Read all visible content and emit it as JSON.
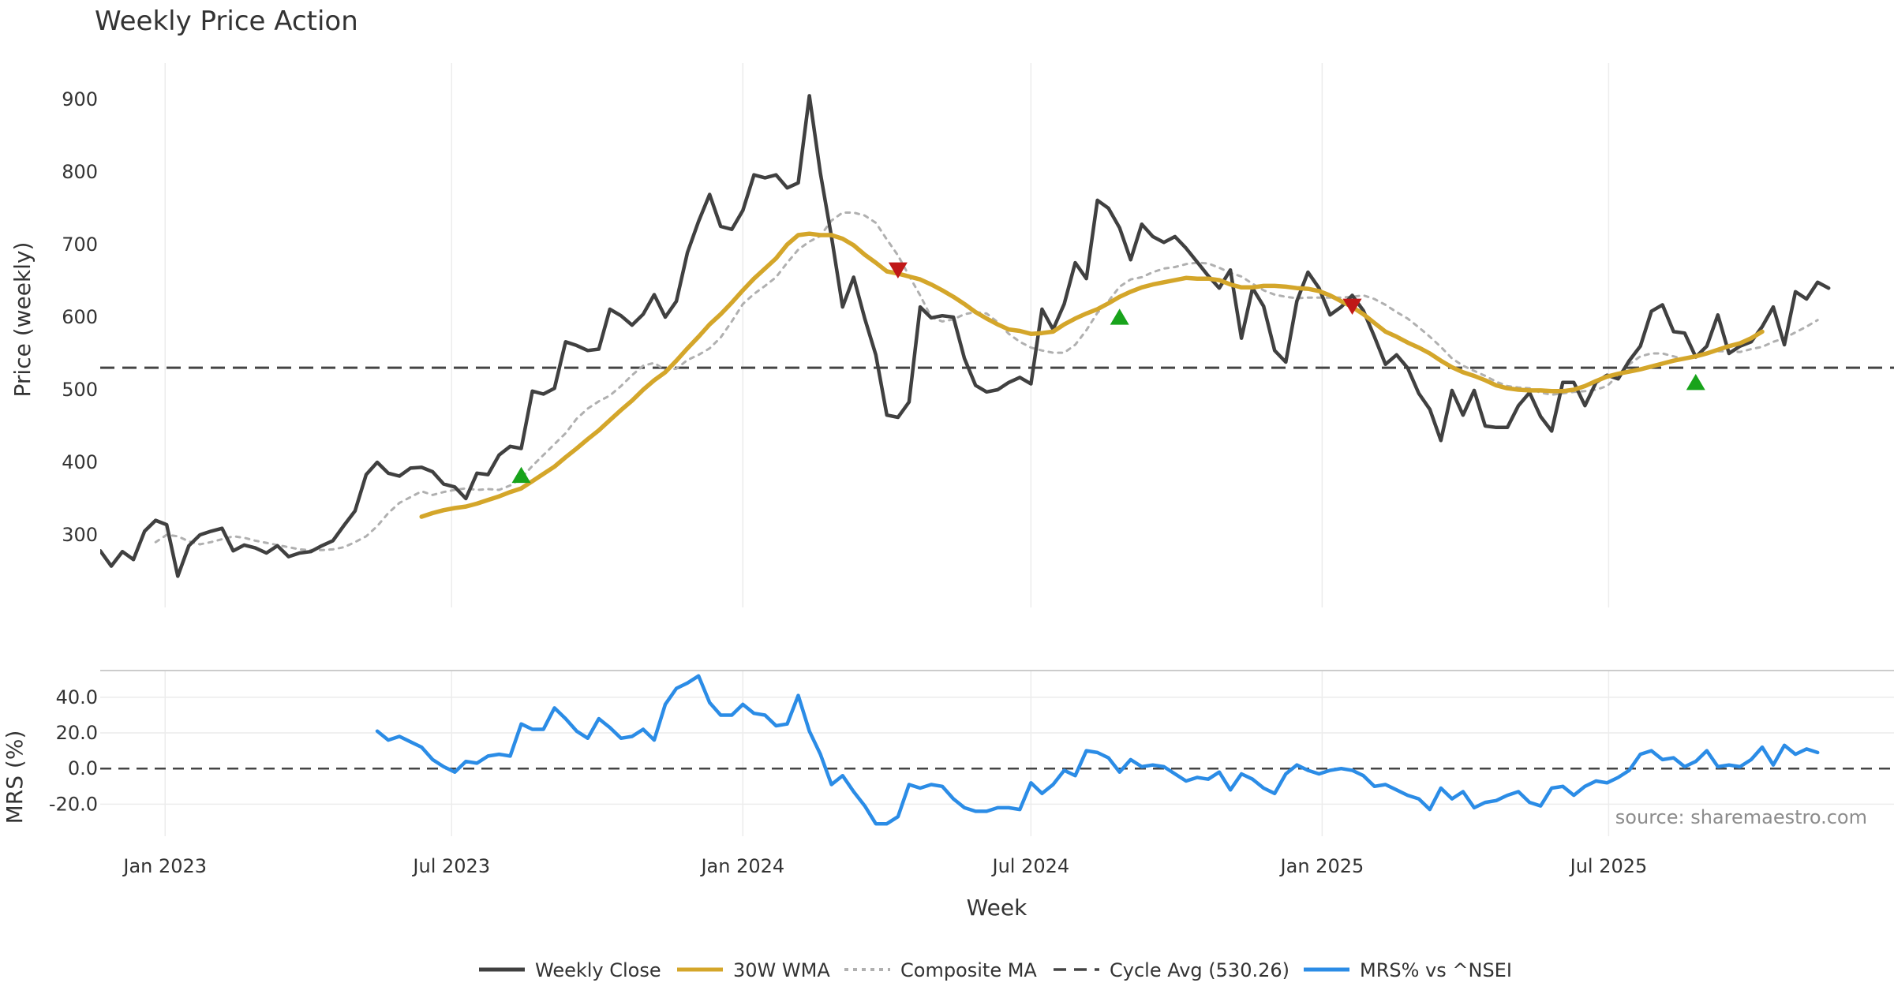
{
  "title": "Weekly Price Action",
  "source": "source: sharemaestro.com",
  "colors": {
    "close": "#404040",
    "wma": "#d4a62a",
    "composite": "#b0b0b0",
    "cycle": "#444444",
    "mrs": "#2b8ce6",
    "up": "#18a31b",
    "down": "#c01818",
    "grid": "#ececec"
  },
  "chart_data": [
    {
      "type": "line",
      "panel": "price",
      "ylabel": "Price (weekly)",
      "ylim": [
        200,
        950
      ],
      "yticks": [
        300,
        400,
        500,
        600,
        700,
        800,
        900
      ],
      "ytick_labels": [
        "300",
        "400",
        "500",
        "600",
        "700",
        "800",
        "900"
      ],
      "x_start": "2022-11-21",
      "grid": true,
      "series": [
        {
          "name": "Weekly Close",
          "start_week": 0,
          "values": [
            278,
            257,
            277,
            266,
            305,
            320,
            314,
            243,
            285,
            300,
            305,
            309,
            278,
            286,
            282,
            275,
            285,
            270,
            275,
            277,
            285,
            292,
            313,
            333,
            383,
            400,
            385,
            381,
            392,
            393,
            387,
            370,
            366,
            350,
            385,
            383,
            410,
            422,
            419,
            498,
            494,
            502,
            566,
            561,
            554,
            556,
            611,
            602,
            589,
            604,
            631,
            600,
            622,
            689,
            732,
            769,
            725,
            721,
            747,
            796,
            792,
            796,
            778,
            785,
            905,
            798,
            711,
            614,
            655,
            598,
            548,
            465,
            462,
            483,
            614,
            599,
            602,
            600,
            543,
            506,
            497,
            500,
            510,
            517,
            508,
            611,
            583,
            618,
            675,
            653,
            761,
            750,
            723,
            679,
            728,
            711,
            703,
            711,
            695,
            676,
            657,
            640,
            665,
            571,
            640,
            615,
            554,
            538,
            622,
            662,
            640,
            603,
            614,
            630,
            609,
            573,
            535,
            548,
            530,
            495,
            473,
            430,
            499,
            465,
            499,
            450,
            448,
            448,
            478,
            496,
            463,
            443,
            510,
            510,
            478,
            510,
            520,
            515,
            540,
            560,
            608,
            617,
            580,
            578,
            545,
            560,
            603,
            550,
            560,
            566,
            587,
            614,
            562,
            635,
            625,
            648,
            640
          ]
        },
        {
          "name": "30W WMA",
          "start_week": 29,
          "values": [
            325,
            330,
            334,
            337,
            339,
            343,
            348,
            353,
            359,
            364,
            374,
            384,
            394,
            407,
            419,
            432,
            444,
            458,
            472,
            485,
            500,
            513,
            524,
            540,
            557,
            573,
            590,
            604,
            620,
            637,
            653,
            667,
            681,
            700,
            713,
            715,
            713,
            713,
            708,
            699,
            686,
            675,
            663,
            660,
            656,
            652,
            645,
            637,
            628,
            618,
            607,
            598,
            590,
            583,
            581,
            577,
            578,
            580,
            590,
            598,
            605,
            611,
            619,
            628,
            635,
            641,
            645,
            648,
            651,
            654,
            653,
            653,
            651,
            645,
            641,
            641,
            643,
            643,
            642,
            640,
            639,
            636,
            630,
            622,
            614,
            604,
            592,
            580,
            573,
            565,
            558,
            550,
            540,
            531,
            524,
            519,
            513,
            506,
            502,
            500,
            499,
            499,
            498,
            498,
            500,
            505,
            512,
            518,
            522,
            525,
            528,
            532,
            536,
            540,
            543,
            546,
            550,
            555,
            560,
            564,
            571,
            580
          ]
        },
        {
          "name": "Composite MA",
          "start_week": 5,
          "values": [
            290,
            300,
            298,
            291,
            287,
            290,
            294,
            298,
            296,
            292,
            289,
            286,
            283,
            280,
            279,
            279,
            280,
            283,
            290,
            298,
            312,
            330,
            344,
            352,
            360,
            355,
            359,
            362,
            364,
            362,
            363,
            362,
            368,
            378,
            395,
            410,
            425,
            440,
            460,
            474,
            484,
            492,
            505,
            520,
            533,
            537,
            527,
            529,
            541,
            548,
            557,
            572,
            594,
            618,
            632,
            643,
            655,
            675,
            693,
            704,
            712,
            733,
            744,
            744,
            740,
            730,
            707,
            685,
            657,
            630,
            600,
            594,
            597,
            604,
            607,
            605,
            593,
            577,
            566,
            558,
            554,
            551,
            551,
            562,
            582,
            606,
            622,
            642,
            652,
            655,
            662,
            667,
            669,
            673,
            675,
            674,
            668,
            661,
            656,
            646,
            637,
            631,
            628,
            626,
            627,
            627,
            627,
            627,
            628,
            630,
            625,
            617,
            607,
            598,
            586,
            573,
            559,
            543,
            533,
            526,
            519,
            511,
            505,
            503,
            502,
            496,
            493,
            495,
            497,
            498,
            500,
            505,
            520,
            535,
            546,
            550,
            550,
            546,
            542,
            546,
            550,
            553,
            553,
            552,
            556,
            559,
            566,
            571,
            579,
            587,
            596
          ]
        }
      ],
      "hline": {
        "name": "Cycle Avg (530.26)",
        "value": 530.26
      },
      "markers": [
        {
          "type": "up",
          "week": 38,
          "value": 382
        },
        {
          "type": "down",
          "week": 72,
          "value": 665
        },
        {
          "type": "up",
          "week": 92,
          "value": 600
        },
        {
          "type": "down",
          "week": 113,
          "value": 615
        },
        {
          "type": "up",
          "week": 144,
          "value": 510
        }
      ]
    },
    {
      "type": "line",
      "panel": "mrs",
      "ylabel": "MRS (%)",
      "xlabel": "Week",
      "ylim": [
        -38,
        55
      ],
      "yticks": [
        -20,
        0,
        20,
        40
      ],
      "ytick_labels": [
        "-20.0",
        "0.0",
        "20.0",
        "40.0"
      ],
      "xtick_labels": [
        "Jan 2023",
        "Jul 2023",
        "Jan 2024",
        "Jul 2024",
        "Jan 2025",
        "Jul 2025"
      ],
      "xtick_dates": [
        "2023-01-01",
        "2023-07-01",
        "2024-01-01",
        "2024-07-01",
        "2025-01-01",
        "2025-07-01"
      ],
      "series": [
        {
          "name": "MRS% vs ^NSEI",
          "start_week": 25,
          "values": [
            21,
            16,
            18,
            15,
            12,
            5,
            1,
            -2,
            4,
            3,
            7,
            8,
            7,
            25,
            22,
            22,
            34,
            28,
            21,
            17,
            28,
            23,
            17,
            18,
            22,
            16,
            36,
            45,
            48,
            52,
            37,
            30,
            30,
            36,
            31,
            30,
            24,
            25,
            41,
            21,
            8,
            -9,
            -4,
            -13,
            -21,
            -31,
            -31,
            -27,
            -9,
            -11,
            -9,
            -10,
            -17,
            -22,
            -24,
            -24,
            -22,
            -22,
            -23,
            -8,
            -14,
            -9,
            -1,
            -4,
            10,
            9,
            6,
            -2,
            5,
            1,
            2,
            1,
            -3,
            -7,
            -5,
            -6,
            -2,
            -12,
            -3,
            -6,
            -11,
            -14,
            -3,
            2,
            -1,
            -3,
            -1,
            0,
            -1,
            -4,
            -10,
            -9,
            -12,
            -15,
            -17,
            -23,
            -11,
            -17,
            -13,
            -22,
            -19,
            -18,
            -15,
            -13,
            -19,
            -21,
            -11,
            -10,
            -15,
            -10,
            -7,
            -8,
            -5,
            -1,
            8,
            10,
            5,
            6,
            1,
            4,
            10,
            1,
            2,
            1,
            5,
            12,
            2,
            13,
            8,
            11,
            9
          ]
        }
      ],
      "hline": {
        "value": 0
      }
    }
  ],
  "legend": [
    {
      "name": "Weekly Close",
      "style": "solid",
      "color": "#404040"
    },
    {
      "name": "30W WMA",
      "style": "solid",
      "color": "#d4a62a"
    },
    {
      "name": "Composite MA",
      "style": "dotted",
      "color": "#b0b0b0"
    },
    {
      "name": "Cycle Avg (530.26)",
      "style": "dashed",
      "color": "#444444"
    },
    {
      "name": "MRS% vs ^NSEI",
      "style": "solid",
      "color": "#2b8ce6"
    }
  ]
}
